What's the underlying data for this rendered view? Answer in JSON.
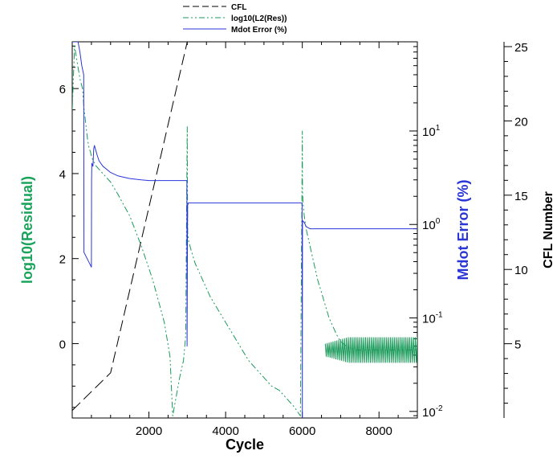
{
  "chart_data": {
    "type": "line",
    "xlabel": "Cycle",
    "xlim": [
      0,
      9000
    ],
    "x_ticks": [
      2000,
      4000,
      6000,
      8000
    ],
    "legend": {
      "placement": "top-center",
      "entries": [
        {
          "label": "CFL",
          "style": "dashed",
          "color": "#000000"
        },
        {
          "label": "log10(L2(Res))",
          "style": "dash-dot",
          "color": "#1a9a5a"
        },
        {
          "label": "Mdot Error (%)",
          "style": "solid",
          "color": "#2a35d8"
        }
      ]
    },
    "axes": {
      "left": {
        "label": "log10(Residual)",
        "color": "#1aa35a",
        "range": [
          -1.75,
          7.1
        ],
        "ticks": [
          0,
          2,
          4,
          6
        ]
      },
      "right_inner": {
        "label": "Mdot Error (%)",
        "color": "#2a35d8",
        "scale": "log",
        "range": [
          0.0085,
          90
        ],
        "ticks": [
          {
            "value": 0.01,
            "base": "10",
            "exp": "-2"
          },
          {
            "value": 0.1,
            "base": "10",
            "exp": "-1"
          },
          {
            "value": 1,
            "base": "10",
            "exp": "0"
          },
          {
            "value": 10,
            "base": "10",
            "exp": "1"
          }
        ]
      },
      "right_outer": {
        "label": "CFL Number",
        "color": "#000000",
        "range": [
          0,
          25
        ],
        "ticks": [
          5,
          10,
          15,
          20,
          25
        ]
      }
    },
    "series": [
      {
        "name": "CFL",
        "axis": "right_outer",
        "style": "dashed",
        "color": "#000000",
        "x": [
          0,
          1000,
          3000,
          9000
        ],
        "y": [
          0.5,
          3,
          25,
          25
        ]
      },
      {
        "name": "log10(L2(Res))",
        "axis": "left",
        "style": "dash-dot",
        "color": "#1a9a5a",
        "x": [
          0,
          60,
          150,
          210,
          270,
          310,
          350,
          400,
          440,
          480,
          500,
          550,
          600,
          700,
          800,
          1000,
          1200,
          1500,
          1800,
          2100,
          2400,
          2550,
          2620,
          2700,
          2800,
          2900,
          2960,
          3000,
          3005,
          3010,
          3040,
          3100,
          3200,
          3400,
          3600,
          3800,
          4000,
          4200,
          4400,
          4600,
          4800,
          5000,
          5200,
          5400,
          5600,
          5800,
          5950,
          6000,
          6005,
          6020,
          6050,
          6100,
          6200,
          6300,
          6400,
          6500,
          6600,
          6700,
          6800,
          6900,
          7000,
          7200,
          7400,
          7600,
          8000,
          8500,
          9000
        ],
        "y": [
          5.5,
          7.0,
          6.5,
          6.2,
          6.0,
          5.5,
          5.2,
          4.8,
          4.6,
          4.5,
          4.4,
          4.3,
          4.2,
          4.1,
          4.0,
          3.8,
          3.5,
          3.0,
          2.3,
          1.5,
          0.5,
          -0.3,
          -1.7,
          -1.3,
          -0.8,
          -0.4,
          0.2,
          5.1,
          3.5,
          2.6,
          2.4,
          2.2,
          1.9,
          1.5,
          1.1,
          0.8,
          0.5,
          0.2,
          -0.1,
          -0.4,
          -0.6,
          -0.8,
          -1.0,
          -1.1,
          -1.3,
          -1.5,
          -1.7,
          5.0,
          3.6,
          3.3,
          3.0,
          2.7,
          2.3,
          1.9,
          1.5,
          1.2,
          0.9,
          0.6,
          0.4,
          0.2,
          0.05,
          -0.1,
          -0.15,
          -0.15,
          -0.15,
          -0.15,
          -0.15
        ]
      },
      {
        "name": "Mdot Error (%)",
        "axis": "right_inner",
        "style": "solid",
        "color": "#2a35d8",
        "x": [
          0,
          100,
          150,
          200,
          250,
          300,
          305,
          310,
          500,
          505,
          510,
          540,
          560,
          580,
          600,
          650,
          700,
          800,
          1000,
          1200,
          1500,
          1800,
          2000,
          2500,
          2990,
          2995,
          3005,
          3010,
          3030,
          3100,
          4000,
          5000,
          5995,
          6000,
          6005,
          6050,
          6100,
          6200,
          7000,
          9000
        ],
        "y": [
          90,
          90,
          90,
          70,
          50,
          40,
          0.5,
          0.5,
          0.35,
          3.0,
          4.5,
          4.2,
          6.5,
          7.0,
          6.5,
          5.5,
          4.8,
          4.2,
          3.6,
          3.3,
          3.1,
          3.0,
          2.95,
          2.95,
          2.95,
          0.05,
          0.8,
          1.6,
          1.7,
          1.7,
          1.7,
          1.7,
          1.7,
          0.0085,
          1.1,
          1.05,
          0.95,
          0.9,
          0.9,
          0.9
        ]
      }
    ]
  }
}
